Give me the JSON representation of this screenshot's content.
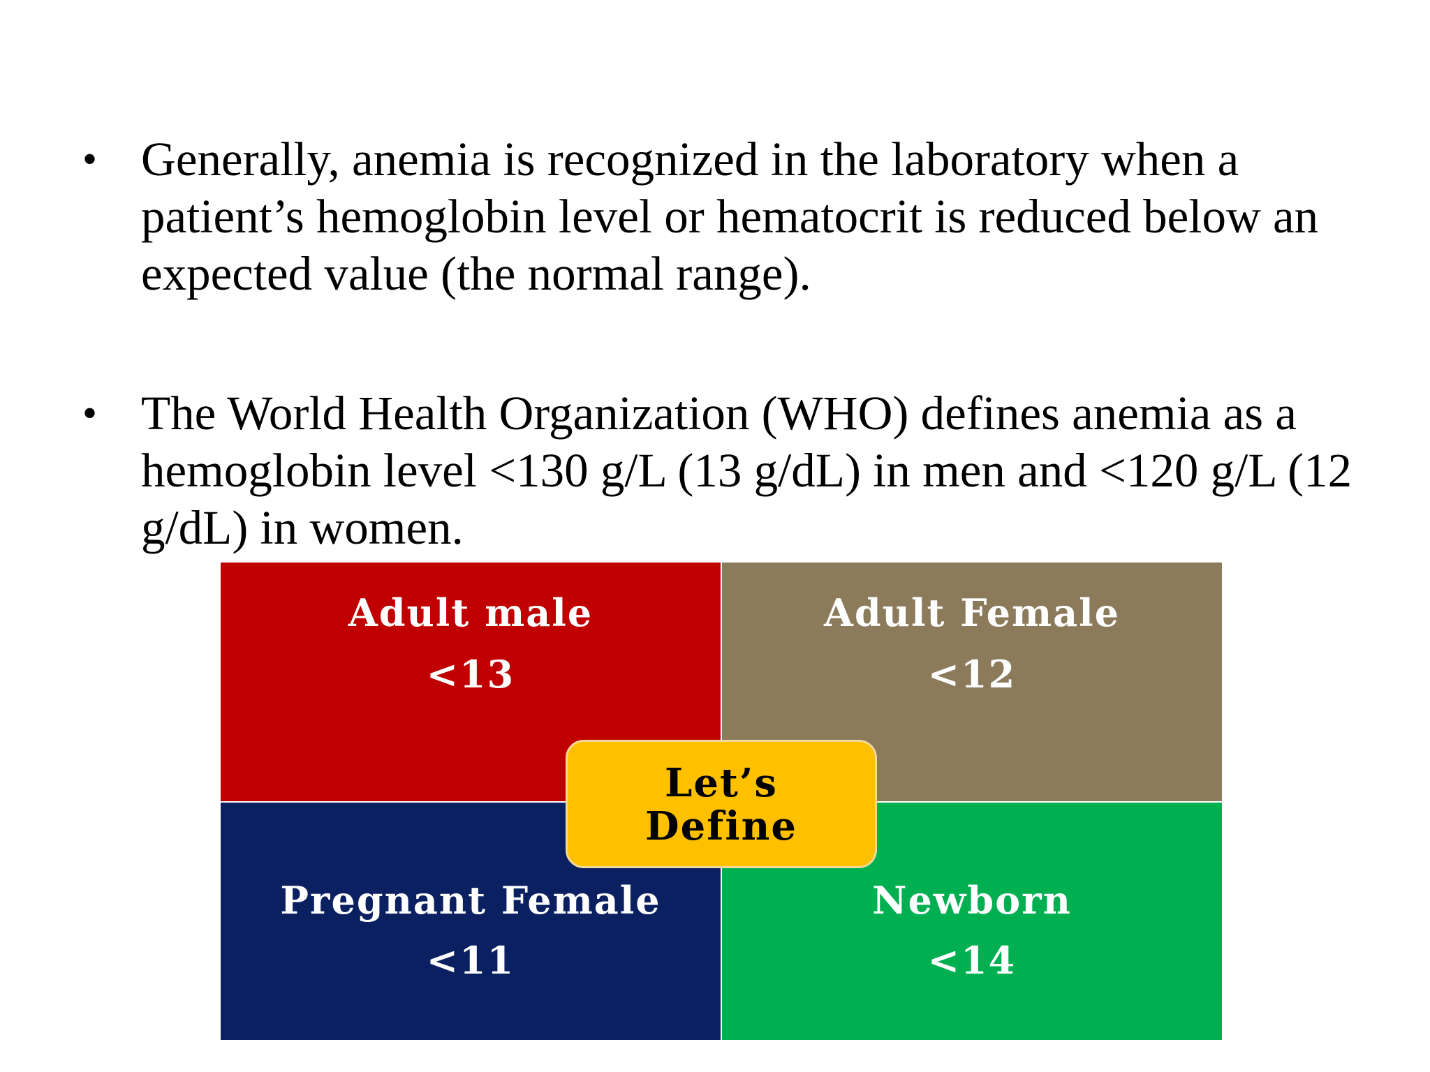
{
  "bullets": [
    "Generally, anemia is recognized in the laboratory when a patient’s hemoglobin level or hematocrit is reduced below an expected value (the normal range).",
    "The World Health Organization (WHO) defines anemia as a hemoglobin level <130 g/L (13 g/dL) in men and <120 g/L (12 g/dL) in women."
  ],
  "bullet_symbol": "•",
  "diagram": {
    "quadrants": [
      {
        "label": "Adult male",
        "value": "<13",
        "color": "#c00000"
      },
      {
        "label": "Adult Female",
        "value": "<12",
        "color": "#8b7b5b"
      },
      {
        "label": "Pregnant Female",
        "value": "<11",
        "color": "#0a2060"
      },
      {
        "label": "Newborn",
        "value": "<14",
        "color": "#00b050"
      }
    ],
    "center": {
      "line1": "Let’s",
      "line2": "Define",
      "color": "#ffc000"
    }
  }
}
